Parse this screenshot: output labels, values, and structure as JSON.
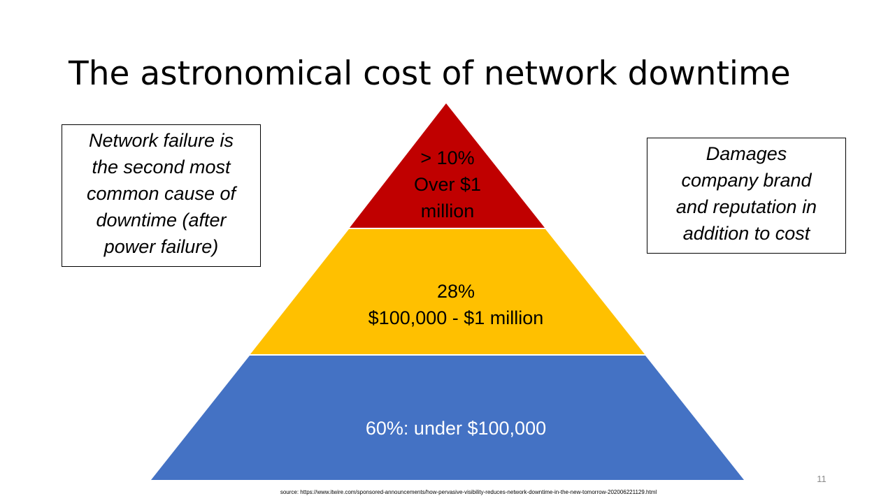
{
  "slide": {
    "title": "The astronomical cost of network downtime",
    "number": "11",
    "source": "source: https://www.itwire.com/sponsored-announcements/how-pervasive-visibility-reduces-network-downtime-in-the-new-tomorrow-202006221129.html"
  },
  "pyramid": {
    "tiers": [
      {
        "line1": "> 10%",
        "line2": "Over $1",
        "line3": "million",
        "color": "#C00000"
      },
      {
        "line1": "28%",
        "line2": "$100,000 - $1 million",
        "color": "#FFC000"
      },
      {
        "line1": "60%: under $100,000",
        "color": "#4472C4"
      }
    ]
  },
  "callouts": {
    "left": {
      "lines": [
        "Network failure is",
        "the second most",
        "common cause of",
        "downtime (after",
        "power failure)"
      ]
    },
    "right": {
      "lines": [
        "Damages",
        "company brand",
        "and reputation in",
        "addition to cost"
      ]
    }
  }
}
